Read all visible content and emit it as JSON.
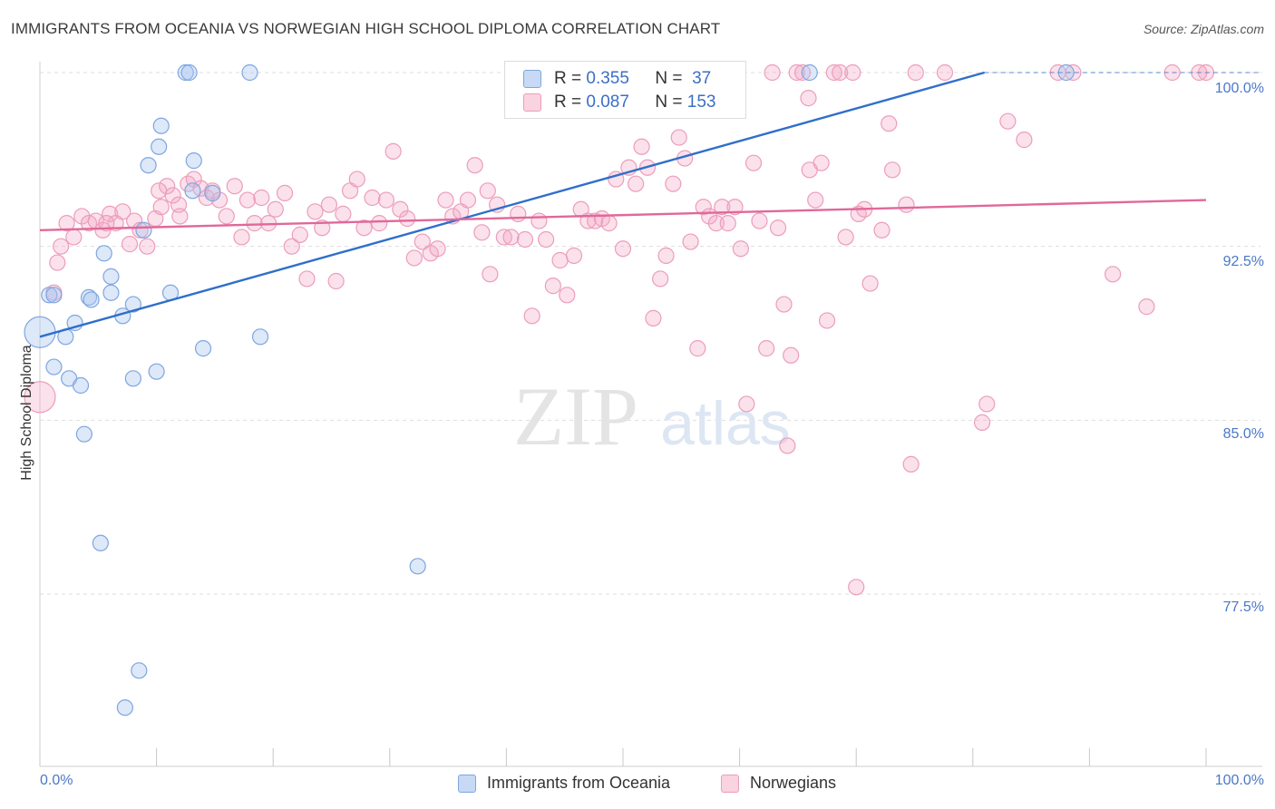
{
  "title": "IMMIGRANTS FROM OCEANIA VS NORWEGIAN HIGH SCHOOL DIPLOMA CORRELATION CHART",
  "source": "Source: ZipAtlas.com",
  "watermark": {
    "zip": "ZIP",
    "atlas": "atlas"
  },
  "legend": {
    "rows": [
      {
        "r_label": "R =",
        "r_value": "0.355",
        "n_label": "N =",
        "n_value": "37"
      },
      {
        "r_label": "R =",
        "r_value": "0.087",
        "n_label": "N =",
        "n_value": "153"
      }
    ]
  },
  "chart_data": {
    "type": "scatter",
    "title": "IMMIGRANTS FROM OCEANIA VS NORWEGIAN HIGH SCHOOL DIPLOMA CORRELATION CHART",
    "xlabel": "",
    "ylabel": "High School Diploma",
    "xlim": [
      0,
      100
    ],
    "ylim": [
      71.2,
      100.8
    ],
    "x_tick_labels": [
      "0.0%",
      "100.0%"
    ],
    "y_ticks": [
      77.5,
      85.0,
      92.5,
      100.0
    ],
    "y_tick_labels": [
      "77.5%",
      "85.0%",
      "92.5%",
      "100.0%"
    ],
    "grid": true,
    "legend_placement": "top-center",
    "colors": {
      "oceania": "#5b8fd8",
      "norwegians": "#e77fa5",
      "oceania_line": "#2f6fcb",
      "norwegians_line": "#e0689a"
    },
    "series": [
      {
        "name": "Immigrants from Oceania",
        "r": 0.355,
        "n": 37,
        "trend": [
          [
            0,
            88.6
          ],
          [
            81,
            100.0
          ]
        ],
        "points": [
          [
            0.0,
            88.8
          ],
          [
            2.2,
            88.6
          ],
          [
            0.8,
            90.4
          ],
          [
            1.2,
            87.3
          ],
          [
            2.5,
            86.8
          ],
          [
            3.5,
            86.5
          ],
          [
            3.8,
            84.4
          ],
          [
            3.0,
            89.2
          ],
          [
            4.2,
            90.3
          ],
          [
            4.4,
            90.2
          ],
          [
            5.5,
            92.2
          ],
          [
            6.1,
            91.2
          ],
          [
            6.1,
            90.5
          ],
          [
            7.1,
            89.5
          ],
          [
            8.0,
            90.0
          ],
          [
            8.9,
            93.2
          ],
          [
            9.3,
            96.0
          ],
          [
            10.2,
            96.8
          ],
          [
            10.4,
            97.7
          ],
          [
            11.2,
            90.5
          ],
          [
            10.0,
            87.1
          ],
          [
            8.0,
            86.8
          ],
          [
            13.1,
            94.9
          ],
          [
            13.2,
            96.2
          ],
          [
            14.0,
            88.1
          ],
          [
            14.8,
            94.8
          ],
          [
            18.9,
            88.6
          ],
          [
            12.5,
            100.0
          ],
          [
            12.8,
            100.0
          ],
          [
            18.0,
            100.0
          ],
          [
            5.2,
            79.7
          ],
          [
            32.4,
            78.7
          ],
          [
            8.5,
            74.2
          ],
          [
            7.3,
            72.6
          ],
          [
            66.0,
            100.0
          ],
          [
            88.0,
            100.0
          ],
          [
            1.2,
            90.4
          ]
        ]
      },
      {
        "name": "Norwegians",
        "r": 0.087,
        "n": 153,
        "trend": [
          [
            0,
            93.2
          ],
          [
            100,
            94.5
          ]
        ],
        "points": [
          [
            0.0,
            86.0
          ],
          [
            1.2,
            90.5
          ],
          [
            1.5,
            91.8
          ],
          [
            1.8,
            92.5
          ],
          [
            2.3,
            93.5
          ],
          [
            2.9,
            92.9
          ],
          [
            3.6,
            93.8
          ],
          [
            4.2,
            93.5
          ],
          [
            4.8,
            93.6
          ],
          [
            5.4,
            93.2
          ],
          [
            6.0,
            93.9
          ],
          [
            6.5,
            93.5
          ],
          [
            7.1,
            94.0
          ],
          [
            7.7,
            92.6
          ],
          [
            8.1,
            93.6
          ],
          [
            8.6,
            93.2
          ],
          [
            9.2,
            92.5
          ],
          [
            9.9,
            93.7
          ],
          [
            10.4,
            94.2
          ],
          [
            10.9,
            95.1
          ],
          [
            11.4,
            94.7
          ],
          [
            11.9,
            94.3
          ],
          [
            12.7,
            95.2
          ],
          [
            13.2,
            95.4
          ],
          [
            13.8,
            95.0
          ],
          [
            14.3,
            94.6
          ],
          [
            14.8,
            94.9
          ],
          [
            15.4,
            94.5
          ],
          [
            16.0,
            93.8
          ],
          [
            16.7,
            95.1
          ],
          [
            17.3,
            92.9
          ],
          [
            17.8,
            94.5
          ],
          [
            18.4,
            93.5
          ],
          [
            19.0,
            94.6
          ],
          [
            19.6,
            93.5
          ],
          [
            20.2,
            94.1
          ],
          [
            21.0,
            94.8
          ],
          [
            21.6,
            92.5
          ],
          [
            22.3,
            93.0
          ],
          [
            22.9,
            91.1
          ],
          [
            23.6,
            94.0
          ],
          [
            24.2,
            93.3
          ],
          [
            24.8,
            94.3
          ],
          [
            25.4,
            91.0
          ],
          [
            26.0,
            93.9
          ],
          [
            26.6,
            94.9
          ],
          [
            27.2,
            95.4
          ],
          [
            27.8,
            93.3
          ],
          [
            28.5,
            94.6
          ],
          [
            29.1,
            93.5
          ],
          [
            29.7,
            94.5
          ],
          [
            30.3,
            96.6
          ],
          [
            30.9,
            94.1
          ],
          [
            31.5,
            93.7
          ],
          [
            32.1,
            92.0
          ],
          [
            32.8,
            92.7
          ],
          [
            33.5,
            92.2
          ],
          [
            34.1,
            92.4
          ],
          [
            34.8,
            94.5
          ],
          [
            35.4,
            93.8
          ],
          [
            36.1,
            94.0
          ],
          [
            36.7,
            94.5
          ],
          [
            37.3,
            96.0
          ],
          [
            37.9,
            93.1
          ],
          [
            38.6,
            91.3
          ],
          [
            39.2,
            94.3
          ],
          [
            39.8,
            92.9
          ],
          [
            40.4,
            92.9
          ],
          [
            41.0,
            93.9
          ],
          [
            41.6,
            92.8
          ],
          [
            42.2,
            89.5
          ],
          [
            42.8,
            93.6
          ],
          [
            43.4,
            92.8
          ],
          [
            44.0,
            90.8
          ],
          [
            44.6,
            91.9
          ],
          [
            45.2,
            90.4
          ],
          [
            45.8,
            92.1
          ],
          [
            46.4,
            94.1
          ],
          [
            47.0,
            93.6
          ],
          [
            47.6,
            93.6
          ],
          [
            48.2,
            93.7
          ],
          [
            48.8,
            93.5
          ],
          [
            49.4,
            95.4
          ],
          [
            50.0,
            92.4
          ],
          [
            50.5,
            95.9
          ],
          [
            51.1,
            95.2
          ],
          [
            51.6,
            96.8
          ],
          [
            52.1,
            95.9
          ],
          [
            52.6,
            89.4
          ],
          [
            53.2,
            91.1
          ],
          [
            53.7,
            92.1
          ],
          [
            54.3,
            95.2
          ],
          [
            54.8,
            97.2
          ],
          [
            55.3,
            96.3
          ],
          [
            55.8,
            92.7
          ],
          [
            56.4,
            88.1
          ],
          [
            56.9,
            94.2
          ],
          [
            57.4,
            93.8
          ],
          [
            58.0,
            93.5
          ],
          [
            58.5,
            94.2
          ],
          [
            59.0,
            93.5
          ],
          [
            59.6,
            94.2
          ],
          [
            60.1,
            92.4
          ],
          [
            60.6,
            85.7
          ],
          [
            61.2,
            96.1
          ],
          [
            61.7,
            93.6
          ],
          [
            62.3,
            88.1
          ],
          [
            62.8,
            100.0
          ],
          [
            63.3,
            93.3
          ],
          [
            63.8,
            90.0
          ],
          [
            64.4,
            87.8
          ],
          [
            64.9,
            100.0
          ],
          [
            65.4,
            100.0
          ],
          [
            65.9,
            98.9
          ],
          [
            66.5,
            94.5
          ],
          [
            67.0,
            96.1
          ],
          [
            67.5,
            89.3
          ],
          [
            68.1,
            100.0
          ],
          [
            68.6,
            100.0
          ],
          [
            69.1,
            92.9
          ],
          [
            69.7,
            100.0
          ],
          [
            70.2,
            93.9
          ],
          [
            70.7,
            94.1
          ],
          [
            71.2,
            90.9
          ],
          [
            72.2,
            93.2
          ],
          [
            72.8,
            97.8
          ],
          [
            75.1,
            100.0
          ],
          [
            77.6,
            100.0
          ],
          [
            80.8,
            84.9
          ],
          [
            81.2,
            85.7
          ],
          [
            83.0,
            97.9
          ],
          [
            84.4,
            97.1
          ],
          [
            87.3,
            100.0
          ],
          [
            88.6,
            100.0
          ],
          [
            64.1,
            83.9
          ],
          [
            74.7,
            83.1
          ],
          [
            70.0,
            77.8
          ],
          [
            92.0,
            91.3
          ],
          [
            94.9,
            89.9
          ],
          [
            97.1,
            100.0
          ],
          [
            100.0,
            100.0
          ],
          [
            99.4,
            100.0
          ],
          [
            74.3,
            94.3
          ],
          [
            73.1,
            95.8
          ],
          [
            66.0,
            95.8
          ],
          [
            58.9,
            100.0
          ],
          [
            38.4,
            94.9
          ],
          [
            5.7,
            93.5
          ],
          [
            10.2,
            94.9
          ],
          [
            12.0,
            93.8
          ]
        ]
      }
    ]
  },
  "bottom_legend": [
    {
      "label": "Immigrants from Oceania"
    },
    {
      "label": "Norwegians"
    }
  ]
}
